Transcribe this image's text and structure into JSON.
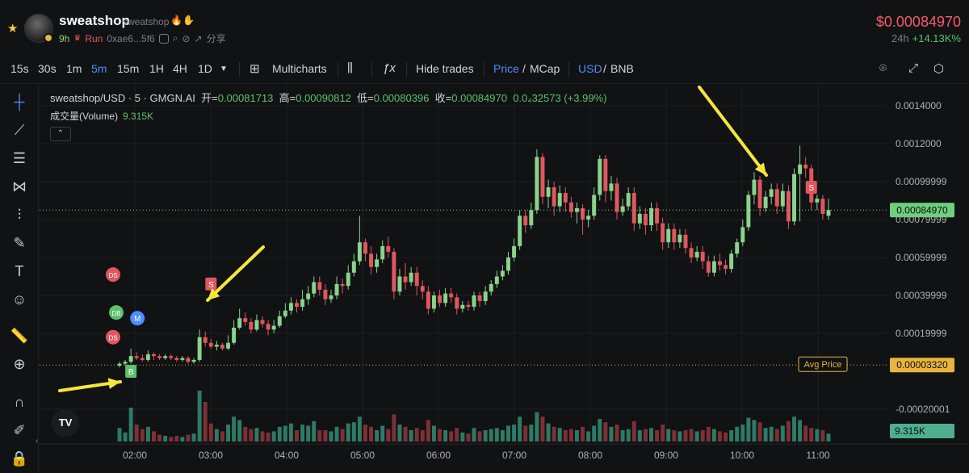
{
  "header": {
    "token_name": "sweatshop",
    "token_handle": "sweatshop",
    "age": "9h",
    "status": "Run",
    "address": "0xae6...5f6",
    "share": "分享",
    "price": "$0.00084970",
    "period": "24h",
    "change": "+14.13K%"
  },
  "toolbar": {
    "intervals": [
      "15s",
      "30s",
      "1m",
      "5m",
      "15m",
      "1H",
      "4H",
      "1D"
    ],
    "active_interval": "5m",
    "multicharts": "Multicharts",
    "hide_trades": "Hide trades",
    "price": "Price",
    "mcap": "MCap",
    "usd": "USD",
    "bnb": "BNB",
    "slash": "/"
  },
  "legend": {
    "symbol": "sweatshop/USD · 5 · GMGN.AI",
    "open_label": "开=",
    "open": "0.00081713",
    "high_label": "高=",
    "high": "0.00090812",
    "low_label": "低=",
    "low": "0.00080396",
    "close_label": "收=",
    "close": "0.00084970",
    "change": "0.0₄32573 (+3.99%)",
    "volume_label": "成交量(Volume)",
    "volume": "9.315K"
  },
  "colors": {
    "up": "#89d38b",
    "down": "#e0575e",
    "up_vol": "#2e7a65",
    "down_vol": "#7d3035",
    "accent": "#4d8dff",
    "avg": "#e7b53c"
  },
  "chart_data": {
    "type": "candlestick",
    "y_ticks": [
      "0.0014000",
      "0.0012000",
      "0.00099999",
      "0.00079999",
      "0.00059999",
      "0.00039999",
      "0.00019999",
      "-0.00020001"
    ],
    "x_ticks": [
      "02:00",
      "03:00",
      "04:00",
      "05:00",
      "06:00",
      "07:00",
      "08:00",
      "09:00",
      "10:00",
      "11:00"
    ],
    "current_price_label": "0.00084970",
    "avg_price_label": "Avg Price",
    "avg_price_value": "0.00003320",
    "volume_label": "9.315K",
    "candles": [
      [
        3e-05,
        4e-05,
        2e-05,
        5e-05,
        1.2
      ],
      [
        4e-05,
        5e-05,
        3e-05,
        6e-05,
        0.8
      ],
      [
        5e-05,
        8e-05,
        4e-05,
        0.00012,
        3.0
      ],
      [
        8e-05,
        7e-05,
        6e-05,
        0.0001,
        1.5
      ],
      [
        7e-05,
        6e-05,
        5e-05,
        9e-05,
        1.1
      ],
      [
        6e-05,
        9e-05,
        5e-05,
        0.00011,
        1.3
      ],
      [
        9e-05,
        8e-05,
        6e-05,
        0.0001,
        0.9
      ],
      [
        8e-05,
        7e-05,
        6e-05,
        9e-05,
        0.6
      ],
      [
        7e-05,
        8e-05,
        6e-05,
        9e-05,
        0.5
      ],
      [
        8e-05,
        7e-05,
        6e-05,
        9e-05,
        0.4
      ],
      [
        7e-05,
        6e-05,
        5e-05,
        8e-05,
        0.5
      ],
      [
        6e-05,
        7e-05,
        5e-05,
        8e-05,
        0.4
      ],
      [
        7e-05,
        5e-05,
        4e-05,
        8e-05,
        0.6
      ],
      [
        5e-05,
        6e-05,
        4e-05,
        7e-05,
        0.7
      ],
      [
        6e-05,
        0.00018,
        5e-05,
        0.00022,
        4.5
      ],
      [
        0.00018,
        0.00015,
        0.00013,
        0.00021,
        3.5
      ],
      [
        0.00015,
        0.00013,
        0.00012,
        0.00017,
        1.6
      ],
      [
        0.00013,
        0.00014,
        0.00011,
        0.00016,
        1.1
      ],
      [
        0.00014,
        0.00012,
        0.00011,
        0.00015,
        0.9
      ],
      [
        0.00012,
        0.00015,
        0.00011,
        0.00019,
        1.5
      ],
      [
        0.00015,
        0.00023,
        0.00014,
        0.00027,
        2.2
      ],
      [
        0.00023,
        0.00028,
        0.00022,
        0.00033,
        1.9
      ],
      [
        0.00028,
        0.00026,
        0.00024,
        0.00031,
        1.3
      ],
      [
        0.00026,
        0.00022,
        0.0002,
        0.00028,
        1.1
      ],
      [
        0.00022,
        0.00027,
        0.00021,
        0.0003,
        1.2
      ],
      [
        0.00027,
        0.00025,
        0.00023,
        0.00029,
        0.9
      ],
      [
        0.00025,
        0.00022,
        0.00019,
        0.00027,
        0.8
      ],
      [
        0.00022,
        0.00024,
        0.0002,
        0.00027,
        0.9
      ],
      [
        0.00024,
        0.00029,
        0.00023,
        0.00032,
        1.3
      ],
      [
        0.00029,
        0.00032,
        0.00028,
        0.00036,
        1.4
      ],
      [
        0.00032,
        0.00036,
        0.0003,
        0.00039,
        1.6
      ],
      [
        0.00036,
        0.00034,
        0.00031,
        0.00038,
        1.0
      ],
      [
        0.00034,
        0.00038,
        0.00032,
        0.00043,
        1.5
      ],
      [
        0.00038,
        0.00041,
        0.00035,
        0.00045,
        1.4
      ],
      [
        0.00041,
        0.00047,
        0.00039,
        0.0005,
        1.8
      ],
      [
        0.00047,
        0.00043,
        0.0004,
        0.0005,
        1.0
      ],
      [
        0.00043,
        0.00038,
        0.00035,
        0.00046,
        1.0
      ],
      [
        0.00038,
        0.0004,
        0.00036,
        0.00043,
        0.9
      ],
      [
        0.0004,
        0.00046,
        0.00038,
        0.0005,
        1.3
      ],
      [
        0.00046,
        0.00045,
        0.00041,
        0.00049,
        1.1
      ],
      [
        0.00045,
        0.00052,
        0.00043,
        0.00056,
        1.6
      ],
      [
        0.00052,
        0.00058,
        0.0005,
        0.00062,
        1.7
      ],
      [
        0.00058,
        0.00068,
        0.00056,
        0.00082,
        2.2
      ],
      [
        0.00068,
        0.00062,
        0.00058,
        0.0007,
        1.5
      ],
      [
        0.00062,
        0.00055,
        0.00051,
        0.00066,
        1.3
      ],
      [
        0.00055,
        0.00059,
        0.00052,
        0.00062,
        1.0
      ],
      [
        0.00059,
        0.00066,
        0.00057,
        0.00069,
        1.4
      ],
      [
        0.00066,
        0.00063,
        0.0006,
        0.00071,
        1.1
      ],
      [
        0.00063,
        0.00042,
        0.00038,
        0.00065,
        2.4
      ],
      [
        0.00042,
        0.0005,
        0.0004,
        0.00054,
        1.5
      ],
      [
        0.0005,
        0.00047,
        0.00043,
        0.00057,
        1.3
      ],
      [
        0.00047,
        0.00052,
        0.00045,
        0.00055,
        1.0
      ],
      [
        0.00052,
        0.00045,
        0.0004,
        0.00055,
        1.2
      ],
      [
        0.00045,
        0.00042,
        0.00038,
        0.00048,
        1.0
      ],
      [
        0.00042,
        0.00033,
        0.0003,
        0.00045,
        1.9
      ],
      [
        0.00033,
        0.0004,
        0.00031,
        0.00042,
        1.4
      ],
      [
        0.0004,
        0.00036,
        0.00034,
        0.00043,
        1.1
      ],
      [
        0.00036,
        0.00041,
        0.00034,
        0.00044,
        1.0
      ],
      [
        0.00041,
        0.00039,
        0.00036,
        0.00044,
        0.9
      ],
      [
        0.00039,
        0.00033,
        0.0003,
        0.00041,
        1.2
      ],
      [
        0.00033,
        0.00035,
        0.00031,
        0.00037,
        0.8
      ],
      [
        0.00035,
        0.00034,
        0.00032,
        0.00037,
        0.7
      ],
      [
        0.00034,
        0.0004,
        0.00032,
        0.00042,
        1.2
      ],
      [
        0.0004,
        0.00037,
        0.00034,
        0.00042,
        0.9
      ],
      [
        0.00037,
        0.00042,
        0.00035,
        0.00045,
        1.0
      ],
      [
        0.00042,
        0.00046,
        0.0004,
        0.00048,
        1.1
      ],
      [
        0.00046,
        0.0005,
        0.00044,
        0.00053,
        1.2
      ],
      [
        0.0005,
        0.00053,
        0.00048,
        0.00056,
        1.0
      ],
      [
        0.00053,
        0.0006,
        0.00051,
        0.00063,
        1.4
      ],
      [
        0.0006,
        0.00066,
        0.00058,
        0.0007,
        1.5
      ],
      [
        0.00066,
        0.00082,
        0.00064,
        0.00085,
        2.2
      ],
      [
        0.00082,
        0.00077,
        0.00073,
        0.00085,
        1.4
      ],
      [
        0.00077,
        0.00085,
        0.00075,
        0.00089,
        1.5
      ],
      [
        0.00085,
        0.00113,
        0.00083,
        0.00117,
        2.6
      ],
      [
        0.00113,
        0.00092,
        0.00088,
        0.00115,
        2.2
      ],
      [
        0.00092,
        0.00097,
        0.00086,
        0.00101,
        1.6
      ],
      [
        0.00097,
        0.00087,
        0.00082,
        0.001,
        1.3
      ],
      [
        0.00087,
        0.00094,
        0.00084,
        0.00098,
        1.2
      ],
      [
        0.00094,
        0.00089,
        0.00084,
        0.00097,
        1.0
      ],
      [
        0.00089,
        0.00084,
        0.00081,
        0.00092,
        1.1
      ],
      [
        0.00084,
        0.00086,
        0.00078,
        0.00089,
        1.0
      ],
      [
        0.00086,
        0.0008,
        0.00072,
        0.00088,
        1.3
      ],
      [
        0.0008,
        0.00082,
        0.00076,
        0.00085,
        0.9
      ],
      [
        0.00082,
        0.00093,
        0.0008,
        0.00097,
        1.4
      ],
      [
        0.00093,
        0.00112,
        0.0009,
        0.00114,
        2.0
      ],
      [
        0.00112,
        0.00095,
        0.00089,
        0.00114,
        1.7
      ],
      [
        0.00095,
        0.00099,
        0.0009,
        0.00103,
        1.3
      ],
      [
        0.00099,
        0.00084,
        0.0008,
        0.00102,
        1.5
      ],
      [
        0.00084,
        0.00087,
        0.00082,
        0.00091,
        1.0
      ],
      [
        0.00087,
        0.00094,
        0.00085,
        0.00097,
        1.1
      ],
      [
        0.00094,
        0.00078,
        0.00074,
        0.00097,
        1.8
      ],
      [
        0.00078,
        0.00083,
        0.00075,
        0.00087,
        1.0
      ],
      [
        0.00083,
        0.00077,
        0.00072,
        0.00086,
        1.1
      ],
      [
        0.00077,
        0.00086,
        0.00074,
        0.00089,
        1.2
      ],
      [
        0.00086,
        0.00078,
        0.00074,
        0.00089,
        1.0
      ],
      [
        0.00078,
        0.00068,
        0.00064,
        0.00081,
        1.5
      ],
      [
        0.00068,
        0.00075,
        0.00065,
        0.00078,
        1.1
      ],
      [
        0.00075,
        0.00068,
        0.00064,
        0.00078,
        1.0
      ],
      [
        0.00068,
        0.00072,
        0.00065,
        0.00075,
        0.9
      ],
      [
        0.00072,
        0.00065,
        0.00062,
        0.00075,
        1.0
      ],
      [
        0.00065,
        0.0006,
        0.00057,
        0.00068,
        1.1
      ],
      [
        0.0006,
        0.00063,
        0.00058,
        0.00066,
        0.9
      ],
      [
        0.00063,
        0.00058,
        0.00054,
        0.00066,
        1.0
      ],
      [
        0.00058,
        0.00052,
        0.0005,
        0.00061,
        1.3
      ],
      [
        0.00052,
        0.00058,
        0.0005,
        0.00061,
        1.1
      ],
      [
        0.00058,
        0.00056,
        0.00053,
        0.00062,
        0.9
      ],
      [
        0.00056,
        0.00054,
        0.00051,
        0.00059,
        0.8
      ],
      [
        0.00054,
        0.00062,
        0.00052,
        0.00064,
        1.0
      ],
      [
        0.00062,
        0.00068,
        0.0006,
        0.0007,
        1.3
      ],
      [
        0.00068,
        0.00076,
        0.00066,
        0.0008,
        1.5
      ],
      [
        0.00076,
        0.00093,
        0.00074,
        0.00095,
        2.1
      ],
      [
        0.00093,
        0.00101,
        0.00088,
        0.00105,
        1.9
      ],
      [
        0.00101,
        0.00086,
        0.00082,
        0.00103,
        1.7
      ],
      [
        0.00086,
        0.00092,
        0.00084,
        0.00095,
        1.2
      ],
      [
        0.00092,
        0.00096,
        0.00088,
        0.00099,
        1.3
      ],
      [
        0.00096,
        0.00087,
        0.00083,
        0.00099,
        1.1
      ],
      [
        0.00087,
        0.00095,
        0.00084,
        0.00099,
        1.4
      ],
      [
        0.00095,
        0.00079,
        0.00075,
        0.00098,
        1.8
      ],
      [
        0.00079,
        0.00104,
        0.00077,
        0.00107,
        2.2
      ],
      [
        0.00104,
        0.00109,
        0.00079,
        0.00119,
        1.9
      ],
      [
        0.00109,
        0.00107,
        0.00102,
        0.00113,
        1.4
      ],
      [
        0.00107,
        0.00089,
        0.00085,
        0.00109,
        1.2
      ],
      [
        0.00089,
        0.00091,
        0.00085,
        0.00093,
        1.1
      ],
      [
        0.00091,
        0.00083,
        0.0008,
        0.00093,
        1.0
      ],
      [
        0.00082,
        0.00085,
        0.0008,
        0.00091,
        0.7
      ]
    ],
    "trade_markers": [
      {
        "label": "B",
        "color": "#5cc26b",
        "candle": 2,
        "value": 0.0
      },
      {
        "label": "DS",
        "color": "#e0575e",
        "candle": 0,
        "value": 0.00051
      },
      {
        "label": "DB",
        "color": "#5cc26b",
        "candle": 0,
        "value": 0.00031
      },
      {
        "label": "M",
        "color": "#4d8dff",
        "candle": 2,
        "value": 0.00028
      },
      {
        "label": "DS",
        "color": "#e0575e",
        "candle": 0,
        "value": 0.00018
      },
      {
        "label": "S",
        "color": "#e0575e",
        "candle": 16,
        "value": 0.00046
      },
      {
        "label": "S",
        "color": "#e0575e",
        "candle": 121,
        "value": 0.00097
      }
    ]
  }
}
